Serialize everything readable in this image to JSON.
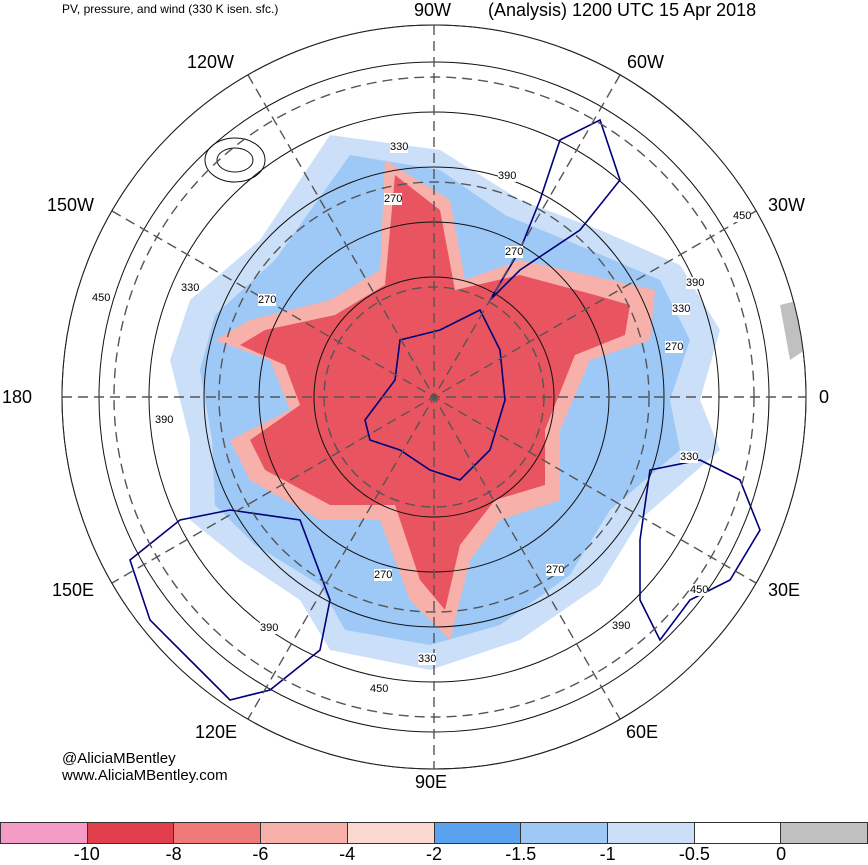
{
  "header": {
    "title_left": "PV, pressure, and wind (330 K isen. sfc.)",
    "title_right": "(Analysis) 1200 UTC 15 Apr 2018"
  },
  "longitude_labels": [
    "90W",
    "60W",
    "30W",
    "0",
    "30E",
    "60E",
    "90E",
    "120E",
    "150E",
    "180",
    "150W",
    "120W"
  ],
  "contour_labels": [
    "330",
    "390",
    "270",
    "450",
    "270",
    "390",
    "330",
    "270",
    "330",
    "450",
    "390",
    "270",
    "330",
    "450",
    "390",
    "270",
    "270",
    "390",
    "330",
    "450"
  ],
  "credits": {
    "handle": "@AliciaMBentley",
    "website": "www.AliciaMBentley.com"
  },
  "colorbar": {
    "colors": [
      "#f59cc6",
      "#e03f4b",
      "#f07a7a",
      "#f7b1aa",
      "#fbd9d3",
      "#5aa2ef",
      "#9ec8f6",
      "#cbe0f8",
      "#ffffff",
      "#c0c0c0"
    ],
    "tick_labels": [
      "-10",
      "-8",
      "-6",
      "-4",
      "-2",
      "-1.5",
      "-1",
      "-0.5",
      "0"
    ]
  },
  "map_colors": {
    "coast": "#00007a",
    "contour": "#111111",
    "grid": "#555555"
  }
}
